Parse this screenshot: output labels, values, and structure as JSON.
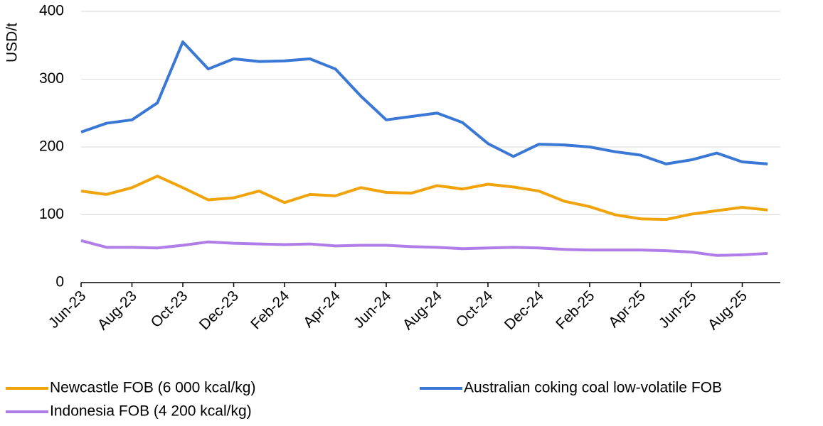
{
  "chart_data": {
    "type": "line",
    "y_label": "USD/t",
    "categories": [
      "Jun-23",
      null,
      "Aug-23",
      null,
      "Oct-23",
      null,
      "Dec-23",
      null,
      "Feb-24",
      null,
      "Apr-24",
      null,
      "Jun-24",
      null,
      "Aug-24",
      null,
      "Oct-24",
      null,
      "Dec-24",
      null,
      "Feb-25",
      null,
      "Apr-25",
      null,
      "Jun-25",
      null,
      "Aug-25",
      null
    ],
    "series": [
      {
        "name": "Newcastle FOB (6 000 kcal/kg)",
        "color": "#f0a30a",
        "values": [
          135,
          130,
          140,
          157,
          140,
          122,
          125,
          135,
          118,
          130,
          128,
          140,
          133,
          132,
          143,
          138,
          145,
          141,
          135,
          120,
          112,
          100,
          94,
          93,
          101,
          106,
          111,
          107
        ]
      },
      {
        "name": "Australian coking coal low-volatile FOB",
        "color": "#3a78d6",
        "values": [
          222,
          235,
          240,
          265,
          355,
          315,
          330,
          326,
          327,
          330,
          315,
          275,
          240,
          245,
          250,
          236,
          205,
          186,
          204,
          203,
          200,
          193,
          188,
          175,
          181,
          191,
          178,
          175
        ]
      },
      {
        "name": "Indonesia FOB (4 200 kcal/kg)",
        "color": "#b07de8",
        "values": [
          62,
          52,
          52,
          51,
          55,
          60,
          58,
          57,
          56,
          57,
          54,
          55,
          55,
          53,
          52,
          50,
          51,
          52,
          51,
          49,
          48,
          48,
          48,
          47,
          45,
          40,
          41,
          43
        ]
      }
    ],
    "ylim": [
      0,
      400
    ],
    "yticks": [
      0,
      100,
      200,
      300,
      400
    ],
    "grid": true,
    "legend": "bottom"
  }
}
